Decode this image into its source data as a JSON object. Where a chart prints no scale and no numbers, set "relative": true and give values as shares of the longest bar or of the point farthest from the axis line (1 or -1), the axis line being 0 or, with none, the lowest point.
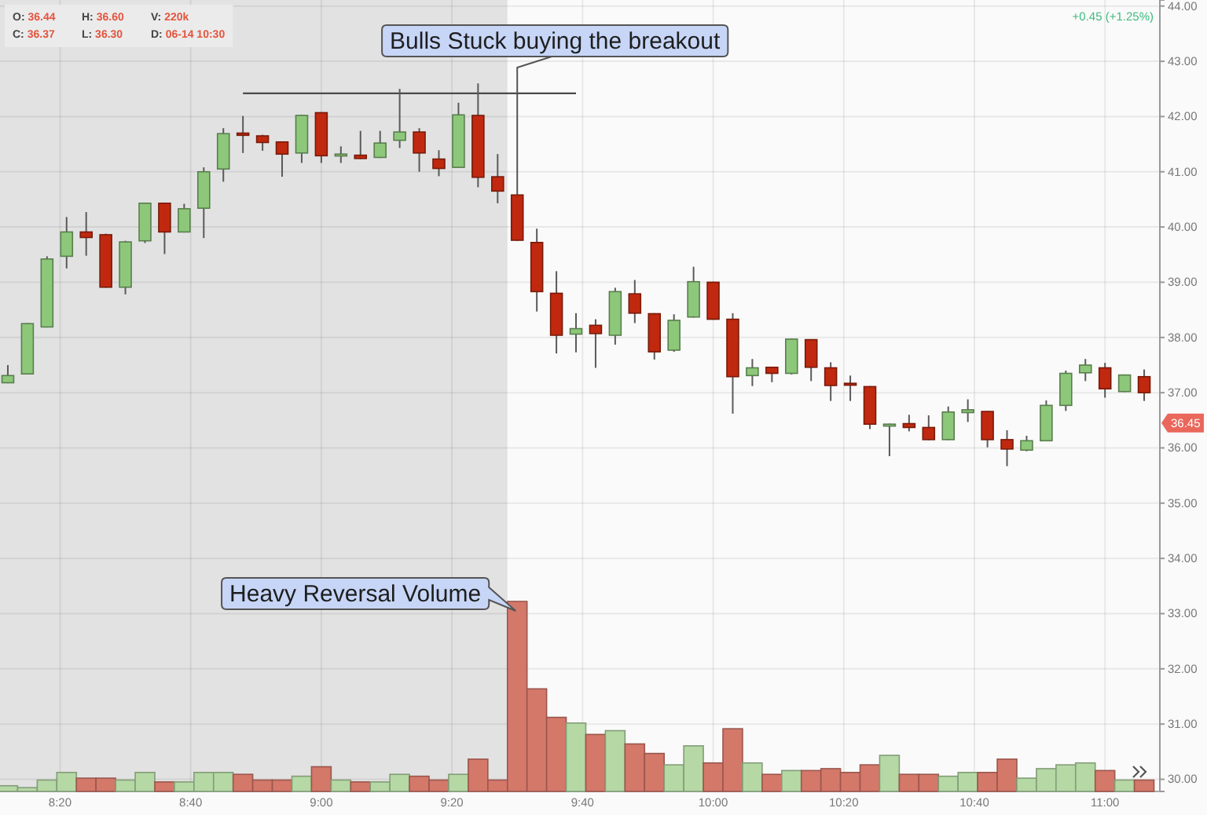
{
  "chart_data": [
    {
      "type": "candlestick",
      "x": [
        8.2,
        8.25,
        8.3,
        8.35,
        8.4,
        8.45,
        8.5,
        8.55,
        8.6,
        8.65,
        8.7,
        8.75,
        8.8,
        8.85,
        8.9,
        8.95,
        9,
        9.05,
        9.1,
        9.15,
        9.2,
        9.25,
        9.3,
        9.35,
        9.4,
        9.45,
        9.5,
        9.55,
        9.6,
        9.65,
        9.7,
        9.75,
        9.8,
        9.85,
        9.9,
        9.95,
        10,
        10.05,
        10.1,
        10.15,
        10.2,
        10.25,
        10.3,
        10.35,
        10.4,
        10.45,
        10.5,
        10.55,
        10.6,
        10.65,
        10.7,
        10.75,
        10.8,
        10.85,
        10.9,
        10.95,
        11,
        11.05,
        11.1
      ],
      "ohlc": [
        [
          37.18,
          37.5,
          37.17,
          37.31
        ],
        [
          37.34,
          38.26,
          37.33,
          38.25
        ],
        [
          38.19,
          39.47,
          38.18,
          39.42
        ],
        [
          39.47,
          40.18,
          39.25,
          39.91
        ],
        [
          39.91,
          40.27,
          39.48,
          39.81
        ],
        [
          39.86,
          39.88,
          38.9,
          38.91
        ],
        [
          38.91,
          39.75,
          38.78,
          39.73
        ],
        [
          39.75,
          40.44,
          39.71,
          40.43
        ],
        [
          40.43,
          40.44,
          39.51,
          39.91
        ],
        [
          39.91,
          40.42,
          39.9,
          40.33
        ],
        [
          40.34,
          41.08,
          39.8,
          41
        ],
        [
          41.05,
          41.79,
          40.82,
          41.69
        ],
        [
          41.7,
          42.01,
          41.34,
          41.66
        ],
        [
          41.65,
          41.67,
          41.38,
          41.53
        ],
        [
          41.54,
          41.55,
          40.91,
          41.32
        ],
        [
          41.34,
          42.03,
          41.16,
          42.02
        ],
        [
          42.07,
          42.08,
          41.16,
          41.29
        ],
        [
          41.29,
          41.46,
          41.16,
          41.32
        ],
        [
          41.3,
          41.74,
          41.23,
          41.24
        ],
        [
          41.26,
          41.74,
          41.25,
          41.52
        ],
        [
          41.57,
          42.5,
          41.43,
          41.72
        ],
        [
          41.72,
          41.79,
          41,
          41.34
        ],
        [
          41.23,
          41.39,
          40.92,
          41.06
        ],
        [
          41.08,
          42.25,
          41.07,
          42.03
        ],
        [
          42.02,
          42.6,
          40.72,
          40.9
        ],
        [
          40.91,
          41.32,
          40.43,
          40.65
        ],
        [
          40.58,
          40.59,
          39.75,
          39.76
        ],
        [
          39.72,
          39.97,
          38.47,
          38.83
        ],
        [
          38.8,
          39.2,
          37.71,
          38.04
        ],
        [
          38.06,
          38.44,
          37.73,
          38.16
        ],
        [
          38.22,
          38.33,
          37.45,
          38.07
        ],
        [
          38.04,
          38.9,
          37.87,
          38.83
        ],
        [
          38.79,
          39.04,
          38.26,
          38.44
        ],
        [
          38.43,
          38.44,
          37.6,
          37.74
        ],
        [
          37.77,
          38.42,
          37.74,
          38.31
        ],
        [
          38.37,
          39.28,
          38.36,
          39.01
        ],
        [
          39,
          39.01,
          38.32,
          38.33
        ],
        [
          38.33,
          38.44,
          36.62,
          37.29
        ],
        [
          37.31,
          37.61,
          37.12,
          37.45
        ],
        [
          37.46,
          37.47,
          37.19,
          37.35
        ],
        [
          37.35,
          37.98,
          37.33,
          37.97
        ],
        [
          37.96,
          37.97,
          37.21,
          37.46
        ],
        [
          37.45,
          37.55,
          36.85,
          37.13
        ],
        [
          37.17,
          37.31,
          36.85,
          37.14
        ],
        [
          37.11,
          37.12,
          36.34,
          36.43
        ],
        [
          36.4,
          36.44,
          35.85,
          36.43
        ],
        [
          36.44,
          36.6,
          36.3,
          36.37
        ],
        [
          36.37,
          36.59,
          36.14,
          36.15
        ],
        [
          36.15,
          36.75,
          36.14,
          36.65
        ],
        [
          36.64,
          36.88,
          36.47,
          36.69
        ],
        [
          36.66,
          36.67,
          36.01,
          36.15
        ],
        [
          36.15,
          36.32,
          35.67,
          35.98
        ],
        [
          35.96,
          36.22,
          35.94,
          36.13
        ],
        [
          36.13,
          36.86,
          36.12,
          36.77
        ],
        [
          36.77,
          37.4,
          36.67,
          37.35
        ],
        [
          37.36,
          37.61,
          37.21,
          37.5
        ],
        [
          37.45,
          37.54,
          36.91,
          37.07
        ],
        [
          37.02,
          37.33,
          37.01,
          37.32
        ],
        [
          37.29,
          37.42,
          36.85,
          37
        ]
      ],
      "colors": [
        "#8dc87a",
        "#8dc87a",
        "#8dc87a",
        "#8dc87a",
        "#c0290f",
        "#c0290f",
        "#8dc87a",
        "#8dc87a",
        "#c0290f",
        "#8dc87a",
        "#8dc87a",
        "#8dc87a",
        "#c0290f",
        "#c0290f",
        "#c0290f",
        "#8dc87a",
        "#c0290f",
        "#8dc87a",
        "#c0290f",
        "#8dc87a",
        "#8dc87a",
        "#c0290f",
        "#c0290f",
        "#8dc87a",
        "#c0290f",
        "#c0290f",
        "#c0290f",
        "#c0290f",
        "#c0290f",
        "#8dc87a",
        "#c0290f",
        "#8dc87a",
        "#c0290f",
        "#c0290f",
        "#8dc87a",
        "#8dc87a",
        "#c0290f",
        "#c0290f",
        "#8dc87a",
        "#c0290f",
        "#8dc87a",
        "#c0290f",
        "#c0290f",
        "#c0290f",
        "#c0290f",
        "#8dc87a",
        "#c0290f",
        "#c0290f",
        "#8dc87a",
        "#8dc87a",
        "#c0290f",
        "#c0290f",
        "#8dc87a",
        "#8dc87a",
        "#8dc87a",
        "#8dc87a",
        "#c0290f",
        "#8dc87a",
        "#c0290f"
      ],
      "series": [
        {
          "type": "line",
          "x": [
            8.8,
            9.65
          ],
          "values": [
            42.42,
            42.42
          ],
          "color": "#4a4a4a"
        }
      ],
      "xlim": [
        8.18,
        11.14
      ],
      "xticks": [
        {
          "value": 8.3333,
          "label": null
        },
        {
          "value": 8.6667,
          "label": null
        },
        {
          "value": 9,
          "label": null
        },
        {
          "value": 9.3333,
          "label": null
        },
        {
          "value": 9.6667,
          "label": null
        },
        {
          "value": 10,
          "label": null
        },
        {
          "value": 10.3333,
          "label": null
        },
        {
          "value": 10.6667,
          "label": null
        },
        {
          "value": 11,
          "label": null
        }
      ],
      "ylim": [
        29.78,
        44.11
      ],
      "yticks": [
        {
          "value": 30,
          "label": "30.00"
        },
        {
          "value": 31,
          "label": "31.00"
        },
        {
          "value": 32,
          "label": "32.00"
        },
        {
          "value": 33,
          "label": "33.00"
        },
        {
          "value": 34,
          "label": "34.00"
        },
        {
          "value": 35,
          "label": "35.00"
        },
        {
          "value": 36,
          "label": "36.00"
        },
        {
          "value": 37,
          "label": "37.00"
        },
        {
          "value": 38,
          "label": "38.00"
        },
        {
          "value": 39,
          "label": "39.00"
        },
        {
          "value": 40,
          "label": "40.00"
        },
        {
          "value": 41,
          "label": "41.00"
        },
        {
          "value": 42,
          "label": "42.00"
        },
        {
          "value": 43,
          "label": "43.00"
        },
        {
          "value": 44,
          "label": "44.00"
        }
      ],
      "tick_labels": "y",
      "grid": true,
      "bands": [
        {
          "axis": "x",
          "from": 8.18,
          "to": 9.475,
          "color": "#e2e2e2"
        }
      ],
      "annotations": [
        {
          "text": "Bulls Stuck buying the breakout",
          "x": 9.5,
          "y": 40.58
        },
        {
          "text": "36.45",
          "y": 36.45
        },
        "O: 36.44",
        "H: 36.60",
        "V: 220k",
        "C: 36.37",
        "L: 36.30",
        "D: 06-14 10:30",
        "+0.45 (+1.25%)"
      ]
    },
    {
      "type": "bar",
      "relative": true,
      "x": [
        8.2,
        8.25,
        8.3,
        8.35,
        8.4,
        8.45,
        8.5,
        8.55,
        8.6,
        8.65,
        8.7,
        8.75,
        8.8,
        8.85,
        8.9,
        8.95,
        9,
        9.05,
        9.1,
        9.15,
        9.2,
        9.25,
        9.3,
        9.35,
        9.4,
        9.45,
        9.5,
        9.55,
        9.6,
        9.65,
        9.7,
        9.75,
        9.8,
        9.85,
        9.9,
        9.95,
        10,
        10.05,
        10.1,
        10.15,
        10.2,
        10.25,
        10.3,
        10.35,
        10.4,
        10.45,
        10.5,
        10.55,
        10.6,
        10.65,
        10.7,
        10.75,
        10.8,
        10.85,
        10.9,
        10.95,
        11,
        11.05,
        11.1
      ],
      "values": [
        0.03,
        0.02,
        0.06,
        0.1,
        0.07,
        0.07,
        0.06,
        0.1,
        0.05,
        0.05,
        0.1,
        0.1,
        0.09,
        0.06,
        0.06,
        0.08,
        0.13,
        0.06,
        0.05,
        0.05,
        0.09,
        0.08,
        0.06,
        0.09,
        0.17,
        0.06,
        1,
        0.54,
        0.39,
        0.36,
        0.3,
        0.32,
        0.25,
        0.2,
        0.14,
        0.24,
        0.15,
        0.33,
        0.15,
        0.09,
        0.11,
        0.11,
        0.12,
        0.1,
        0.14,
        0.19,
        0.09,
        0.09,
        0.08,
        0.1,
        0.1,
        0.17,
        0.07,
        0.12,
        0.14,
        0.15,
        0.11,
        0.06,
        0.06
      ],
      "colors": [
        "#b5d8a5",
        "#b5d8a5",
        "#b5d8a5",
        "#b5d8a5",
        "#d4786a",
        "#d4786a",
        "#b5d8a5",
        "#b5d8a5",
        "#d4786a",
        "#b5d8a5",
        "#b5d8a5",
        "#b5d8a5",
        "#d4786a",
        "#d4786a",
        "#d4786a",
        "#b5d8a5",
        "#d4786a",
        "#b5d8a5",
        "#d4786a",
        "#b5d8a5",
        "#b5d8a5",
        "#d4786a",
        "#d4786a",
        "#b5d8a5",
        "#d4786a",
        "#d4786a",
        "#d4786a",
        "#d4786a",
        "#d4786a",
        "#b5d8a5",
        "#d4786a",
        "#b5d8a5",
        "#d4786a",
        "#d4786a",
        "#b5d8a5",
        "#b5d8a5",
        "#d4786a",
        "#d4786a",
        "#b5d8a5",
        "#d4786a",
        "#b5d8a5",
        "#d4786a",
        "#d4786a",
        "#d4786a",
        "#d4786a",
        "#b5d8a5",
        "#d4786a",
        "#d4786a",
        "#b5d8a5",
        "#b5d8a5",
        "#d4786a",
        "#d4786a",
        "#b5d8a5",
        "#b5d8a5",
        "#b5d8a5",
        "#b5d8a5",
        "#d4786a",
        "#b5d8a5",
        "#d4786a"
      ],
      "xlim": [
        8.18,
        11.14
      ],
      "xticks": [
        {
          "value": 8.3333,
          "label": "8:20"
        },
        {
          "value": 8.6667,
          "label": "8:40"
        },
        {
          "value": 9,
          "label": "9:00"
        },
        {
          "value": 9.3333,
          "label": "9:20"
        },
        {
          "value": 9.6667,
          "label": "9:40"
        },
        {
          "value": 10,
          "label": "10:00"
        },
        {
          "value": 10.3333,
          "label": "10:20"
        },
        {
          "value": 10.6667,
          "label": "10:40"
        },
        {
          "value": 11,
          "label": "11:00"
        }
      ],
      "tick_labels": "x",
      "annotations": [
        {
          "text": "Heavy Reversal Volume",
          "x": 9.5,
          "y": 1
        }
      ]
    }
  ]
}
